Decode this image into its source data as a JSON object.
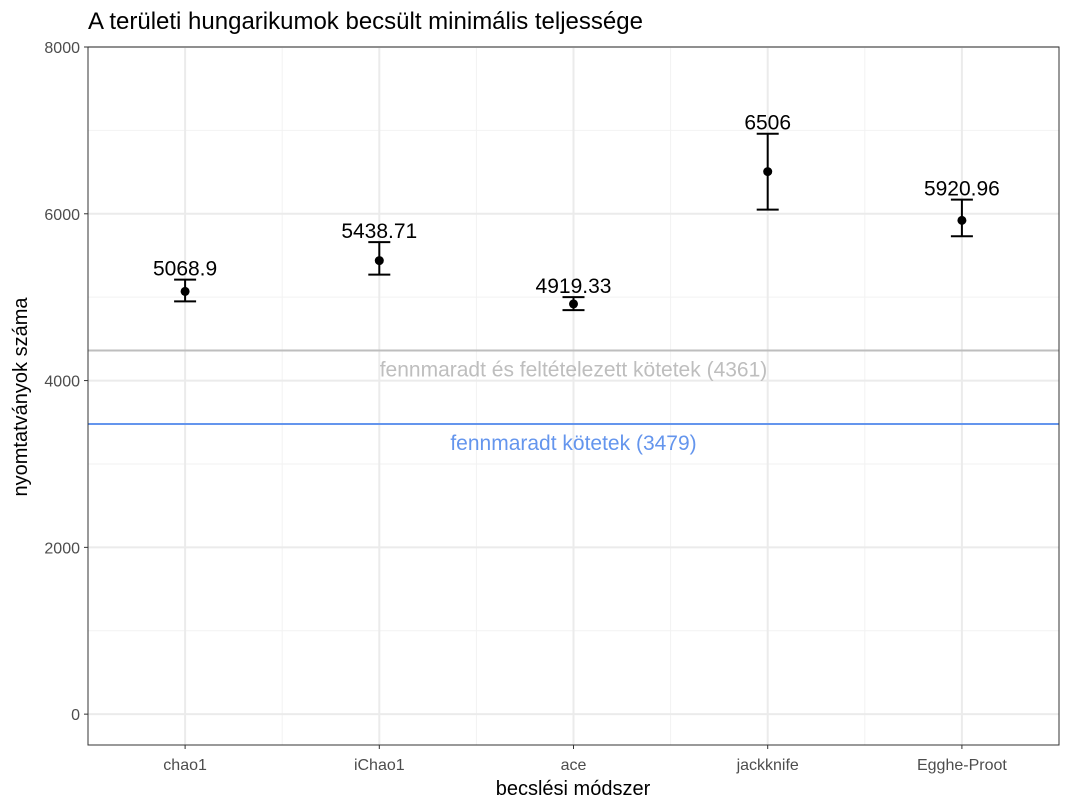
{
  "chart_data": {
    "type": "errorbar",
    "title": "A területi hungarikumok becsült minimális teljessége",
    "xlabel": "becslési módszer",
    "ylabel": "nyomtatványok száma",
    "ylim": [
      -370,
      8000
    ],
    "y_ticks": [
      0,
      2000,
      4000,
      6000,
      8000
    ],
    "grid": true,
    "categories": [
      "chao1",
      "iChao1",
      "ace",
      "jackknife",
      "Egghe-Proot"
    ],
    "points": [
      {
        "category": "chao1",
        "value": 5068.9,
        "label": "5068.9",
        "lower": 4950,
        "upper": 5210
      },
      {
        "category": "iChao1",
        "value": 5438.71,
        "label": "5438.71",
        "lower": 5270,
        "upper": 5660
      },
      {
        "category": "ace",
        "value": 4919.33,
        "label": "4919.33",
        "lower": 4845,
        "upper": 5000
      },
      {
        "category": "jackknife",
        "value": 6506,
        "label": "6506",
        "lower": 6050,
        "upper": 6960
      },
      {
        "category": "Egghe-Proot",
        "value": 5920.96,
        "label": "5920.96",
        "lower": 5730,
        "upper": 6170
      }
    ],
    "reference_lines": [
      {
        "value": 4361,
        "label": "fennmaradt és feltételezett kötetek (4361)",
        "color": "#bebebe"
      },
      {
        "value": 3479,
        "label": "fennmaradt kötetek (3479)",
        "color": "#6495ed"
      }
    ],
    "point_color": "#000000"
  }
}
